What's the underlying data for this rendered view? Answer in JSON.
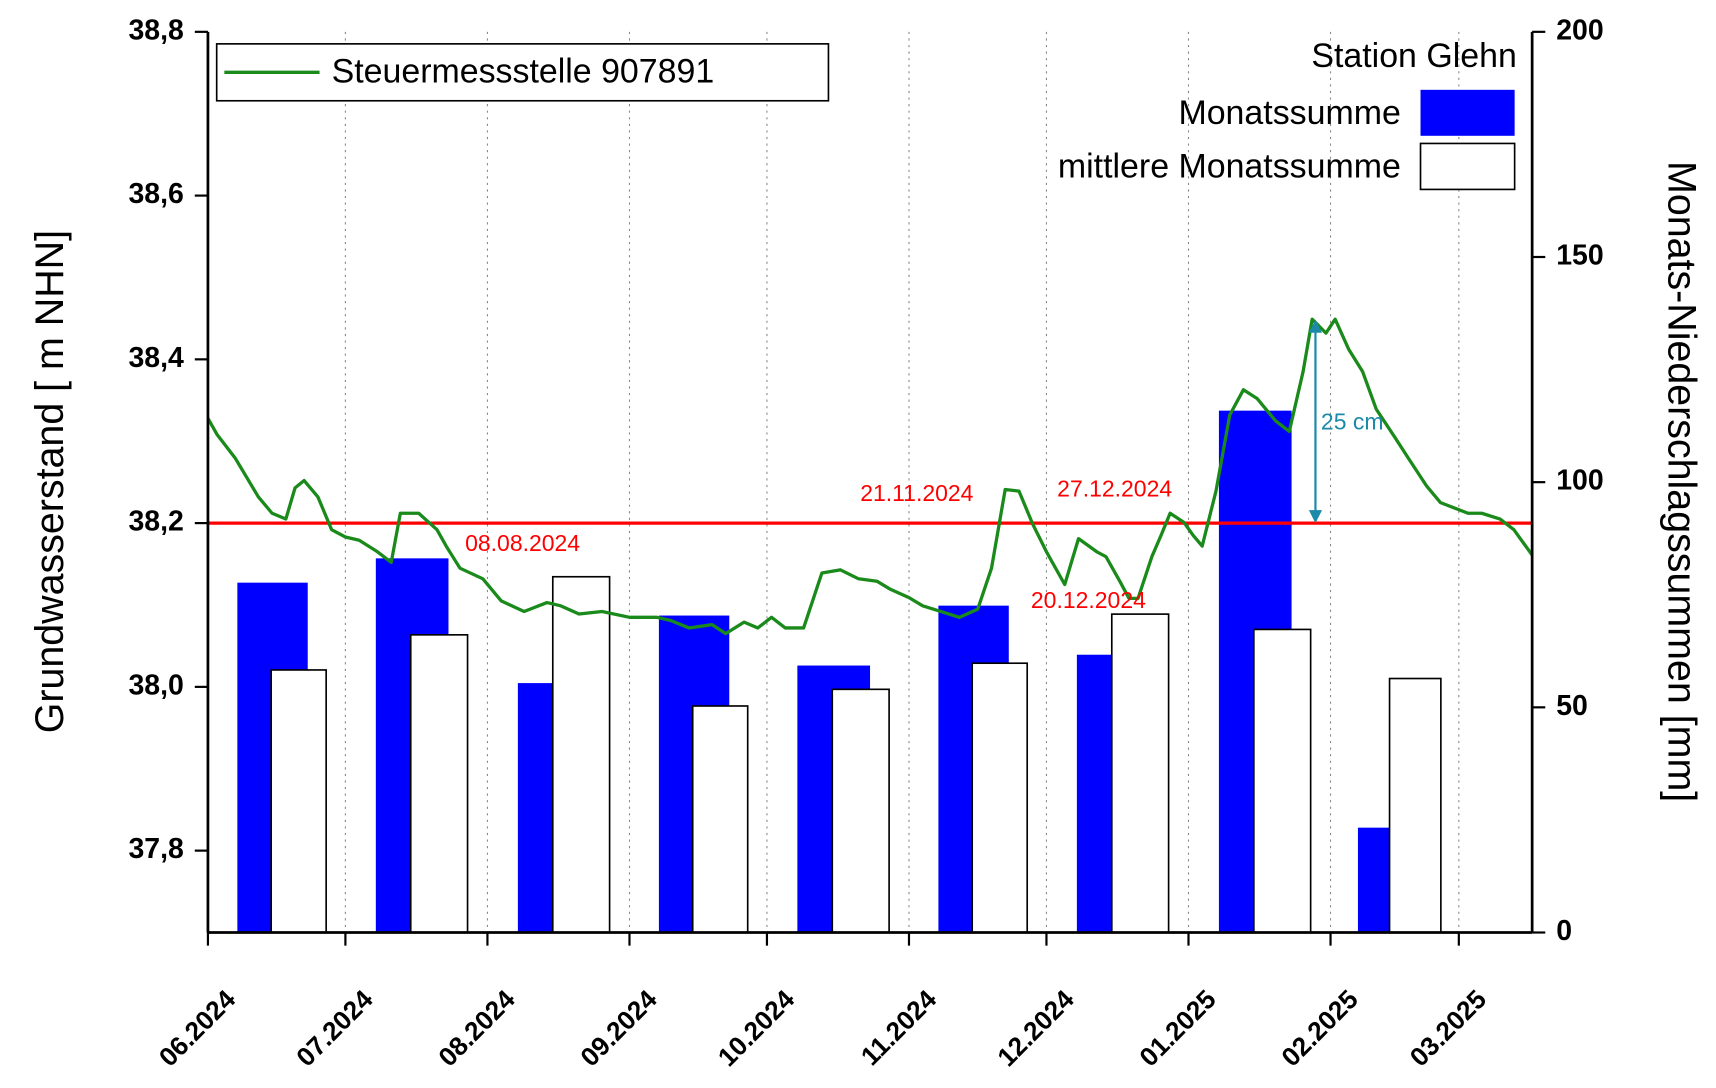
{
  "chart_data": {
    "type": "combo",
    "y_label": "Grundwasserstand [ m NHN]",
    "y2_label": "Monats-Niederschlagssummen [mm]",
    "legend_title": "Station Glehn",
    "xlim": [
      "2024-06-01",
      "2025-03-17"
    ],
    "xticks": [
      {
        "value": "2024-06-01",
        "label": "06.2024"
      },
      {
        "value": "2024-07-01",
        "label": "07.2024"
      },
      {
        "value": "2024-08-01",
        "label": "08.2024"
      },
      {
        "value": "2024-09-01",
        "label": "09.2024"
      },
      {
        "value": "2024-10-01",
        "label": "10.2024"
      },
      {
        "value": "2024-11-01",
        "label": "11.2024"
      },
      {
        "value": "2024-12-01",
        "label": "12.2024"
      },
      {
        "value": "2025-01-01",
        "label": "01.2025"
      },
      {
        "value": "2025-02-01",
        "label": "02.2025"
      },
      {
        "value": "2025-03-01",
        "label": "03.2025"
      }
    ],
    "x_grid": true,
    "ylim": [
      37.7,
      38.8
    ],
    "yticks": [
      {
        "value": 37.8,
        "label": "37,8"
      },
      {
        "value": 38.0,
        "label": "38,0"
      },
      {
        "value": 38.2,
        "label": "38,2"
      },
      {
        "value": 38.4,
        "label": "38,4"
      },
      {
        "value": 38.6,
        "label": "38,6"
      },
      {
        "value": 38.8,
        "label": "38,8"
      }
    ],
    "y2lim": [
      0,
      200
    ],
    "y2ticks": [
      0,
      50,
      100,
      150,
      200
    ],
    "reference_line": {
      "value": 38.2,
      "color": "#ff0000"
    },
    "series": [
      {
        "name": "Steuermessstelle 907891",
        "type": "line",
        "color": "#1a8a1a",
        "x": [
          "2024-06-01",
          "2024-06-03",
          "2024-06-07",
          "2024-06-12",
          "2024-06-15",
          "2024-06-18",
          "2024-06-20",
          "2024-06-22",
          "2024-06-25",
          "2024-06-28",
          "2024-07-01",
          "2024-07-04",
          "2024-07-08",
          "2024-07-11",
          "2024-07-13",
          "2024-07-17",
          "2024-07-21",
          "2024-07-23",
          "2024-07-26",
          "2024-07-31",
          "2024-08-04",
          "2024-08-09",
          "2024-08-14",
          "2024-08-17",
          "2024-08-21",
          "2024-08-26",
          "2024-09-01",
          "2024-09-07",
          "2024-09-10",
          "2024-09-14",
          "2024-09-19",
          "2024-09-22",
          "2024-09-26",
          "2024-09-29",
          "2024-10-02",
          "2024-10-05",
          "2024-10-09",
          "2024-10-13",
          "2024-10-17",
          "2024-10-21",
          "2024-10-25",
          "2024-10-28",
          "2024-11-01",
          "2024-11-04",
          "2024-11-08",
          "2024-11-12",
          "2024-11-16",
          "2024-11-19",
          "2024-11-22",
          "2024-11-25",
          "2024-11-28",
          "2024-12-01",
          "2024-12-05",
          "2024-12-08",
          "2024-12-12",
          "2024-12-14",
          "2024-12-17",
          "2024-12-19",
          "2024-12-21",
          "2024-12-24",
          "2024-12-26",
          "2024-12-28",
          "2024-12-31",
          "2025-01-02",
          "2025-01-04",
          "2025-01-07",
          "2025-01-10",
          "2025-01-13",
          "2025-01-16",
          "2025-01-20",
          "2025-01-23",
          "2025-01-26",
          "2025-01-28",
          "2025-01-31",
          "2025-02-02",
          "2025-02-05",
          "2025-02-08",
          "2025-02-11",
          "2025-02-15",
          "2025-02-18",
          "2025-02-22",
          "2025-02-25",
          "2025-03-03",
          "2025-03-06",
          "2025-03-10",
          "2025-03-13",
          "2025-03-17"
        ],
        "values": [
          38.328,
          38.308,
          38.279,
          38.232,
          38.212,
          38.205,
          38.243,
          38.252,
          38.232,
          38.192,
          38.183,
          38.179,
          38.165,
          38.152,
          38.212,
          38.212,
          38.192,
          38.172,
          38.145,
          38.132,
          38.105,
          38.092,
          38.103,
          38.099,
          38.089,
          38.092,
          38.085,
          38.085,
          38.081,
          38.072,
          38.076,
          38.065,
          38.079,
          38.072,
          38.085,
          38.072,
          38.072,
          38.139,
          38.143,
          38.132,
          38.129,
          38.119,
          38.109,
          38.099,
          38.092,
          38.085,
          38.095,
          38.145,
          38.241,
          38.239,
          38.199,
          38.165,
          38.125,
          38.181,
          38.165,
          38.159,
          38.129,
          38.108,
          38.108,
          38.159,
          38.185,
          38.212,
          38.201,
          38.185,
          38.172,
          38.239,
          38.332,
          38.363,
          38.352,
          38.325,
          38.312,
          38.385,
          38.449,
          38.432,
          38.449,
          38.412,
          38.385,
          38.339,
          38.305,
          38.279,
          38.245,
          38.225,
          38.212,
          38.212,
          38.205,
          38.192,
          38.161
        ]
      },
      {
        "name": "Monatssumme",
        "type": "bar",
        "axis": "y2",
        "color": "#0000ff",
        "x": [
          "2024-06",
          "2024-07",
          "2024-08",
          "2024-09",
          "2024-10",
          "2024-11",
          "2024-12",
          "2025-01",
          "2025-02"
        ],
        "values": [
          77.5,
          82.9,
          55.2,
          70.2,
          59.1,
          72.4,
          61.5,
          115.7,
          23.1
        ]
      },
      {
        "name": "mittlere Monatssumme",
        "type": "bar",
        "axis": "y2",
        "color": "#ffffff",
        "x": [
          "2024-06",
          "2024-07",
          "2024-08",
          "2024-09",
          "2024-10",
          "2024-11",
          "2024-12",
          "2025-01",
          "2025-02"
        ],
        "values": [
          58.3,
          66.1,
          79.0,
          50.3,
          54.0,
          59.8,
          70.7,
          67.3,
          56.4
        ]
      }
    ],
    "annotations": [
      {
        "text": "08.08.2024",
        "color": "#ff0000"
      },
      {
        "text": "21.11.2024",
        "color": "#ff0000"
      },
      {
        "text": "27.12.2024",
        "color": "#ff0000"
      },
      {
        "text": "20.12.2024",
        "color": "#ff0000"
      },
      {
        "text": "25 cm",
        "color": "#1a8aa8"
      }
    ]
  }
}
